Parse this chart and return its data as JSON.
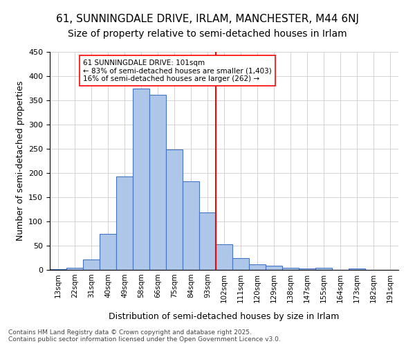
{
  "title1": "61, SUNNINGDALE DRIVE, IRLAM, MANCHESTER, M44 6NJ",
  "title2": "Size of property relative to semi-detached houses in Irlam",
  "xlabel": "Distribution of semi-detached houses by size in Irlam",
  "ylabel": "Number of semi-detached properties",
  "categories": [
    "13sqm",
    "22sqm",
    "31sqm",
    "40sqm",
    "49sqm",
    "58sqm",
    "66sqm",
    "75sqm",
    "84sqm",
    "93sqm",
    "102sqm",
    "111sqm",
    "120sqm",
    "129sqm",
    "138sqm",
    "147sqm",
    "155sqm",
    "164sqm",
    "173sqm",
    "182sqm",
    "191sqm"
  ],
  "values": [
    1,
    5,
    22,
    75,
    193,
    375,
    362,
    249,
    183,
    119,
    53,
    25,
    11,
    9,
    5,
    3,
    5,
    0,
    3,
    0,
    0
  ],
  "bar_color": "#aec6e8",
  "bar_edge_color": "#4472c4",
  "annotation_text": "61 SUNNINGDALE DRIVE: 101sqm\n← 83% of semi-detached houses are smaller (1,403)\n16% of semi-detached houses are larger (262) →",
  "vline_x": 9.5,
  "ylim": [
    0,
    450
  ],
  "yticks": [
    0,
    50,
    100,
    150,
    200,
    250,
    300,
    350,
    400,
    450
  ],
  "footer": "Contains HM Land Registry data © Crown copyright and database right 2025.\nContains public sector information licensed under the Open Government Licence v3.0.",
  "title1_fontsize": 11,
  "title2_fontsize": 10,
  "xlabel_fontsize": 9,
  "ylabel_fontsize": 9
}
